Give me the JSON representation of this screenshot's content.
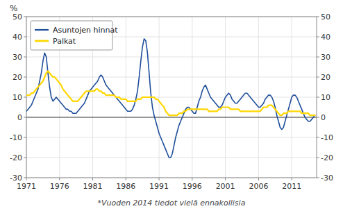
{
  "chart_data": {
    "type": "line",
    "y_label": "%",
    "footnote": "*Vuoden 2014 tiedot vielä ennakollisia",
    "xlim": [
      1971,
      2014.75
    ],
    "xticks": [
      1971,
      1976,
      1981,
      1986,
      1991,
      1996,
      2001,
      2006,
      2011
    ],
    "ylim": [
      -30,
      50
    ],
    "yticks": [
      -30,
      -20,
      -10,
      0,
      10,
      20,
      30,
      40,
      50
    ],
    "y2lim": [
      -30,
      50
    ],
    "y2ticks": [
      -30,
      -20,
      -10,
      0,
      10,
      20,
      30,
      40,
      50
    ],
    "grid": true,
    "legend": "upper left",
    "x": [
      1971.0,
      1971.25,
      1971.5,
      1971.75,
      1972.0,
      1972.25,
      1972.5,
      1972.75,
      1973.0,
      1973.25,
      1973.5,
      1973.75,
      1974.0,
      1974.25,
      1974.5,
      1974.75,
      1975.0,
      1975.25,
      1975.5,
      1975.75,
      1976.0,
      1976.25,
      1976.5,
      1976.75,
      1977.0,
      1977.25,
      1977.5,
      1977.75,
      1978.0,
      1978.25,
      1978.5,
      1978.75,
      1979.0,
      1979.25,
      1979.5,
      1979.75,
      1980.0,
      1980.25,
      1980.5,
      1980.75,
      1981.0,
      1981.25,
      1981.5,
      1981.75,
      1982.0,
      1982.25,
      1982.5,
      1982.75,
      1983.0,
      1983.25,
      1983.5,
      1983.75,
      1984.0,
      1984.25,
      1984.5,
      1984.75,
      1985.0,
      1985.25,
      1985.5,
      1985.75,
      1986.0,
      1986.25,
      1986.5,
      1986.75,
      1987.0,
      1987.25,
      1987.5,
      1987.75,
      1988.0,
      1988.25,
      1988.5,
      1988.75,
      1989.0,
      1989.25,
      1989.5,
      1989.75,
      1990.0,
      1990.25,
      1990.5,
      1990.75,
      1991.0,
      1991.25,
      1991.5,
      1991.75,
      1992.0,
      1992.25,
      1992.5,
      1992.75,
      1993.0,
      1993.25,
      1993.5,
      1993.75,
      1994.0,
      1994.25,
      1994.5,
      1994.75,
      1995.0,
      1995.25,
      1995.5,
      1995.75,
      1996.0,
      1996.25,
      1996.5,
      1996.75,
      1997.0,
      1997.25,
      1997.5,
      1997.75,
      1998.0,
      1998.25,
      1998.5,
      1998.75,
      1999.0,
      1999.25,
      1999.5,
      1999.75,
      2000.0,
      2000.25,
      2000.5,
      2000.75,
      2001.0,
      2001.25,
      2001.5,
      2001.75,
      2002.0,
      2002.25,
      2002.5,
      2002.75,
      2003.0,
      2003.25,
      2003.5,
      2003.75,
      2004.0,
      2004.25,
      2004.5,
      2004.75,
      2005.0,
      2005.25,
      2005.5,
      2005.75,
      2006.0,
      2006.25,
      2006.5,
      2006.75,
      2007.0,
      2007.25,
      2007.5,
      2007.75,
      2008.0,
      2008.25,
      2008.5,
      2008.75,
      2009.0,
      2009.25,
      2009.5,
      2009.75,
      2010.0,
      2010.25,
      2010.5,
      2010.75,
      2011.0,
      2011.25,
      2011.5,
      2011.75,
      2012.0,
      2012.25,
      2012.5,
      2012.75,
      2013.0,
      2013.25,
      2013.5,
      2013.75,
      2014.0,
      2014.25,
      2014.5
    ],
    "series": [
      {
        "name": "Asuntojen hinnat",
        "color": "#1F4E9A",
        "values": [
          3,
          4,
          5,
          6,
          8,
          10,
          12,
          14,
          18,
          22,
          28,
          32,
          30,
          22,
          15,
          10,
          8,
          9,
          10,
          9,
          8,
          7,
          6,
          5,
          4,
          4,
          3,
          3,
          2,
          2,
          2,
          3,
          4,
          5,
          6,
          7,
          9,
          11,
          13,
          14,
          15,
          16,
          17,
          18,
          20,
          21,
          20,
          18,
          16,
          15,
          14,
          13,
          12,
          11,
          10,
          9,
          8,
          7,
          6,
          5,
          4,
          3,
          3,
          3,
          4,
          6,
          9,
          13,
          20,
          28,
          35,
          39,
          38,
          32,
          22,
          12,
          5,
          1,
          -2,
          -5,
          -8,
          -10,
          -12,
          -14,
          -16,
          -18,
          -20,
          -20,
          -18,
          -14,
          -10,
          -7,
          -4,
          -2,
          0,
          2,
          4,
          5,
          5,
          4,
          3,
          2,
          2,
          5,
          8,
          10,
          13,
          15,
          16,
          14,
          12,
          10,
          9,
          8,
          7,
          6,
          5,
          5,
          6,
          8,
          10,
          11,
          12,
          11,
          9,
          8,
          7,
          7,
          8,
          9,
          10,
          11,
          12,
          12,
          11,
          10,
          9,
          8,
          7,
          6,
          5,
          5,
          6,
          7,
          9,
          10,
          11,
          11,
          10,
          8,
          5,
          1,
          -2,
          -5,
          -6,
          -5,
          -2,
          1,
          4,
          7,
          10,
          11,
          11,
          10,
          8,
          6,
          4,
          2,
          0,
          -1,
          -2,
          -2,
          -1,
          0,
          1
        ]
      },
      {
        "name": "Palkat",
        "color": "#FFD700",
        "values": [
          11,
          11,
          11,
          12,
          12,
          13,
          14,
          15,
          16,
          17,
          18,
          20,
          22,
          23,
          22,
          21,
          20,
          20,
          19,
          18,
          17,
          16,
          14,
          13,
          12,
          11,
          10,
          9,
          8,
          8,
          8,
          8,
          9,
          10,
          11,
          12,
          13,
          13,
          13,
          13,
          13,
          13,
          14,
          14,
          13,
          13,
          12,
          12,
          11,
          11,
          11,
          11,
          11,
          11,
          10,
          10,
          10,
          9,
          9,
          9,
          9,
          8,
          8,
          8,
          8,
          8,
          8,
          9,
          9,
          9,
          10,
          10,
          10,
          10,
          10,
          10,
          10,
          10,
          9,
          9,
          8,
          7,
          6,
          5,
          3,
          2,
          1,
          1,
          1,
          1,
          1,
          1,
          2,
          2,
          2,
          3,
          3,
          4,
          4,
          4,
          4,
          4,
          4,
          4,
          4,
          4,
          4,
          4,
          4,
          4,
          3,
          3,
          3,
          3,
          3,
          3,
          4,
          4,
          5,
          5,
          5,
          5,
          5,
          4,
          4,
          4,
          4,
          4,
          4,
          3,
          3,
          3,
          3,
          3,
          3,
          3,
          3,
          3,
          3,
          3,
          3,
          3,
          4,
          5,
          5,
          5,
          6,
          6,
          6,
          5,
          4,
          3,
          2,
          1,
          1,
          2,
          2,
          2,
          3,
          3,
          3,
          3,
          3,
          3,
          3,
          3,
          2,
          2,
          2,
          2,
          2,
          1,
          1,
          1,
          1
        ]
      }
    ]
  }
}
